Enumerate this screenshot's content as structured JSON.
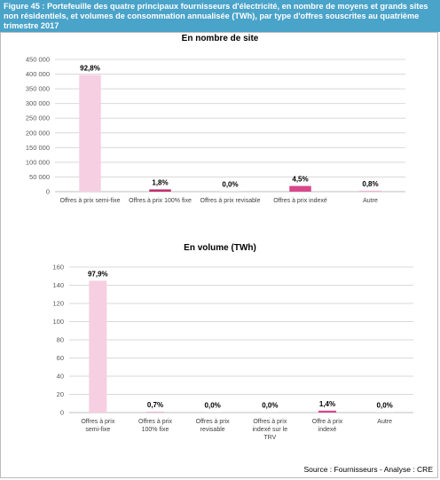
{
  "header": {
    "title": "Figure 45 : Portefeuille des quatre principaux fournisseurs d'électricité, en nombre de moyens et grands sites non résidentiels, et volumes de consommation annualisée (TWh), par type d'offres souscrites au quatrième trimestre 2017"
  },
  "source": "Source : Fournisseurs - Analyse : CRE",
  "chart_data": [
    {
      "type": "bar",
      "title": "En nombre de site",
      "categories": [
        "Offres à prix semi-fixe",
        "Offres à prix 100% fixe",
        "Offres à prix revisable",
        "Offres à prix indexé",
        "Autre"
      ],
      "values": [
        397000,
        7700,
        0,
        19300,
        3400
      ],
      "data_labels": [
        "92,8%",
        "1,8%",
        "0,0%",
        "4,5%",
        "0,8%"
      ],
      "bar_colors": [
        "#f6cfe2",
        "#c0306e",
        "#d9d9d9",
        "#d9478a",
        "#f2b6d0"
      ],
      "y_ticks": [
        "0",
        "50 000",
        "100 000",
        "150 000",
        "200 000",
        "250 000",
        "300 000",
        "350 000",
        "400 000",
        "450 000"
      ],
      "ylim": [
        0,
        450000
      ],
      "grid": true,
      "legend": "none"
    },
    {
      "type": "bar",
      "title": "En volume (TWh)",
      "categories": [
        "Offres à prix semi-fixe",
        "Offres à prix 100% fixe",
        "Offres à prix revisable",
        "Offres à prix indexé sur le TRV",
        "Offre à prix indexé",
        "Autre"
      ],
      "values": [
        145,
        1.0,
        0,
        0,
        2.1,
        0
      ],
      "data_labels": [
        "97,9%",
        "0,7%",
        "0,0%",
        "0,0%",
        "1,4%",
        "0,0%"
      ],
      "bar_colors": [
        "#f6cfe2",
        "#f2b6d0",
        "#d9d9d9",
        "#d9d9d9",
        "#d9478a",
        "#d9d9d9"
      ],
      "y_ticks": [
        "0",
        "20",
        "40",
        "60",
        "80",
        "100",
        "120",
        "140",
        "160"
      ],
      "ylim": [
        0,
        160
      ],
      "grid": true,
      "legend": "none"
    }
  ]
}
